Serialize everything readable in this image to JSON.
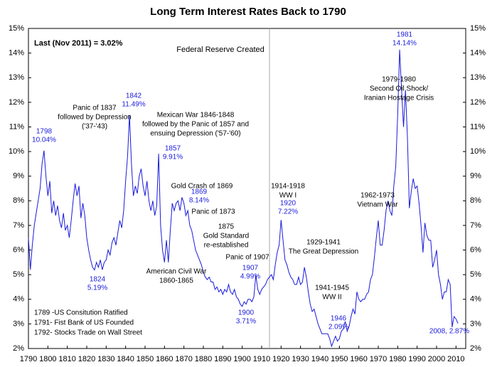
{
  "chart_data": {
    "type": "line",
    "title": "Long Term Interest Rates Back to 1790",
    "x": [
      1790,
      1791,
      1792,
      1793,
      1794,
      1795,
      1796,
      1797,
      1798,
      1799,
      1800,
      1801,
      1802,
      1803,
      1804,
      1805,
      1806,
      1807,
      1808,
      1809,
      1810,
      1811,
      1812,
      1813,
      1814,
      1815,
      1816,
      1817,
      1818,
      1819,
      1820,
      1821,
      1822,
      1823,
      1824,
      1825,
      1826,
      1827,
      1828,
      1829,
      1830,
      1831,
      1832,
      1833,
      1834,
      1835,
      1836,
      1837,
      1838,
      1839,
      1840,
      1841,
      1842,
      1843,
      1844,
      1845,
      1846,
      1847,
      1848,
      1849,
      1850,
      1851,
      1852,
      1853,
      1854,
      1855,
      1856,
      1857,
      1858,
      1859,
      1860,
      1861,
      1862,
      1863,
      1864,
      1865,
      1866,
      1867,
      1868,
      1869,
      1870,
      1871,
      1872,
      1873,
      1874,
      1875,
      1876,
      1877,
      1878,
      1879,
      1880,
      1881,
      1882,
      1883,
      1884,
      1885,
      1886,
      1887,
      1888,
      1889,
      1890,
      1891,
      1892,
      1893,
      1894,
      1895,
      1896,
      1897,
      1898,
      1899,
      1900,
      1901,
      1902,
      1903,
      1904,
      1905,
      1906,
      1907,
      1908,
      1909,
      1910,
      1911,
      1912,
      1913,
      1914,
      1915,
      1916,
      1917,
      1918,
      1919,
      1920,
      1921,
      1922,
      1923,
      1924,
      1925,
      1926,
      1927,
      1928,
      1929,
      1930,
      1931,
      1932,
      1933,
      1934,
      1935,
      1936,
      1937,
      1938,
      1939,
      1940,
      1941,
      1942,
      1943,
      1944,
      1945,
      1946,
      1947,
      1948,
      1949,
      1950,
      1951,
      1952,
      1953,
      1954,
      1955,
      1956,
      1957,
      1958,
      1959,
      1960,
      1961,
      1962,
      1963,
      1964,
      1965,
      1966,
      1967,
      1968,
      1969,
      1970,
      1971,
      1972,
      1973,
      1974,
      1975,
      1976,
      1977,
      1978,
      1979,
      1980,
      1981,
      1982,
      1983,
      1984,
      1985,
      1986,
      1987,
      1988,
      1989,
      1990,
      1991,
      1992,
      1993,
      1994,
      1995,
      1996,
      1997,
      1998,
      1999,
      2000,
      2001,
      2002,
      2003,
      2004,
      2005,
      2006,
      2007,
      2008,
      2009,
      2010,
      2011
    ],
    "values": [
      6.5,
      5.2,
      6.2,
      7.0,
      7.5,
      8.0,
      8.5,
      9.5,
      10.04,
      9.0,
      8.2,
      8.8,
      7.5,
      8.0,
      7.4,
      7.8,
      7.2,
      6.9,
      7.5,
      6.8,
      7.0,
      6.5,
      7.2,
      8.0,
      8.7,
      8.2,
      8.6,
      7.3,
      7.9,
      7.4,
      6.5,
      6.0,
      5.6,
      5.3,
      5.19,
      5.5,
      5.3,
      5.6,
      5.2,
      5.5,
      5.6,
      6.0,
      5.8,
      6.3,
      6.5,
      6.2,
      6.7,
      7.2,
      6.9,
      7.6,
      8.8,
      9.8,
      11.49,
      9.5,
      8.2,
      8.6,
      8.3,
      9.0,
      9.3,
      8.6,
      8.2,
      8.8,
      8.0,
      7.6,
      8.0,
      7.4,
      7.8,
      9.91,
      7.0,
      6.0,
      5.5,
      6.4,
      5.5,
      6.8,
      7.9,
      7.6,
      7.9,
      8.0,
      7.6,
      8.14,
      7.9,
      7.4,
      7.6,
      7.0,
      6.8,
      6.4,
      6.0,
      5.8,
      5.6,
      5.4,
      5.1,
      4.9,
      4.8,
      4.9,
      4.7,
      4.7,
      4.4,
      4.5,
      4.3,
      4.4,
      4.2,
      4.4,
      4.3,
      4.6,
      4.3,
      4.2,
      4.4,
      4.1,
      4.0,
      3.8,
      3.71,
      3.9,
      3.8,
      4.0,
      4.0,
      3.9,
      4.1,
      4.99,
      4.4,
      4.2,
      4.4,
      4.5,
      4.6,
      4.8,
      4.9,
      5.0,
      4.8,
      5.4,
      5.9,
      6.2,
      7.22,
      6.4,
      5.6,
      5.4,
      5.1,
      4.9,
      4.8,
      4.6,
      4.6,
      4.9,
      4.6,
      4.7,
      5.3,
      4.9,
      4.3,
      3.8,
      3.5,
      3.6,
      3.3,
      3.0,
      2.8,
      2.6,
      2.6,
      2.6,
      2.6,
      2.4,
      2.09,
      2.3,
      2.5,
      2.3,
      2.4,
      2.7,
      2.8,
      3.1,
      2.7,
      2.9,
      3.3,
      3.6,
      3.4,
      4.3,
      4.0,
      3.9,
      4.0,
      4.0,
      4.2,
      4.3,
      4.8,
      5.0,
      5.7,
      6.5,
      7.2,
      6.2,
      6.2,
      6.8,
      7.6,
      8.0,
      7.6,
      7.4,
      8.6,
      9.4,
      11.5,
      14.14,
      12.5,
      11.0,
      12.5,
      10.6,
      7.7,
      8.4,
      8.9,
      8.5,
      8.6,
      7.9,
      7.0,
      5.9,
      7.1,
      6.6,
      6.4,
      6.4,
      5.3,
      5.6,
      6.0,
      5.0,
      4.6,
      4.0,
      4.3,
      4.3,
      4.8,
      4.6,
      2.87,
      3.3,
      3.2,
      3.02
    ],
    "color": "#1a1adc",
    "xlim": [
      1790,
      2015
    ],
    "xticks": [
      1790,
      1800,
      1810,
      1820,
      1830,
      1840,
      1850,
      1860,
      1870,
      1880,
      1890,
      1900,
      1910,
      1920,
      1930,
      1940,
      1950,
      1960,
      1970,
      1980,
      1990,
      2000,
      2010
    ],
    "ylim": [
      2,
      15
    ],
    "yticks": [
      {
        "value": 2,
        "label": "2%"
      },
      {
        "value": 3,
        "label": "3%"
      },
      {
        "value": 4,
        "label": "4%"
      },
      {
        "value": 5,
        "label": "5%"
      },
      {
        "value": 6,
        "label": "6%"
      },
      {
        "value": 7,
        "label": "7%"
      },
      {
        "value": 8,
        "label": "8%"
      },
      {
        "value": 9,
        "label": "9%"
      },
      {
        "value": 10,
        "label": "10%"
      },
      {
        "value": 11,
        "label": "11%"
      },
      {
        "value": 12,
        "label": "12%"
      },
      {
        "value": 13,
        "label": "13%"
      },
      {
        "value": 14,
        "label": "14%"
      },
      {
        "value": 15,
        "label": "15%"
      }
    ],
    "grid": false,
    "last_note": "Last (Nov 2011) = 3.02%",
    "fed_note": "Federal Reserve Created",
    "founding_notes": [
      "1789 -US Consitution Ratified",
      "1791- Fist Bank of US Founded",
      "1792- Stocks Trade on Wall Street"
    ],
    "point_labels": [
      {
        "year": "1798",
        "label": "10.04%"
      },
      {
        "year": "1842",
        "label": "11.49%"
      },
      {
        "year": "1857",
        "label": "9.91%"
      },
      {
        "year": "1869",
        "label": "8.14%"
      },
      {
        "year": "1920",
        "label": "7.22%"
      },
      {
        "year": "1907",
        "label": "4.99%"
      },
      {
        "year": "1900",
        "label": "3.71%"
      },
      {
        "year": "1824",
        "label": "5.19%"
      },
      {
        "year": "1946",
        "label": "2.09%"
      },
      {
        "year": "1981",
        "label": "14.14%"
      },
      {
        "year": "2008",
        "label": "2008, 2.87%"
      }
    ],
    "events": [
      [
        "Panic of 1837",
        "followed by Depression",
        "('37-'43)"
      ],
      [
        "Mexican War 1846-1848",
        "followed by the Panic of 1857 and",
        "ensuing Depression ('57-'60)"
      ],
      [
        "Gold Crash of 1869"
      ],
      [
        "Panic of 1873"
      ],
      [
        "1875",
        "Gold Standard",
        "re-established"
      ],
      [
        "Panic of 1907"
      ],
      [
        "American Civil War",
        "1860-1865"
      ],
      [
        "1914-1918",
        "WW I"
      ],
      [
        "1929-1941",
        "The Great Depression"
      ],
      [
        "1941-1945",
        "WW II"
      ],
      [
        "1962-1973",
        "Vietnam War"
      ],
      [
        "1979-1980",
        "Second Oil Shock/",
        "Iranian Hostage Crisis"
      ]
    ]
  }
}
